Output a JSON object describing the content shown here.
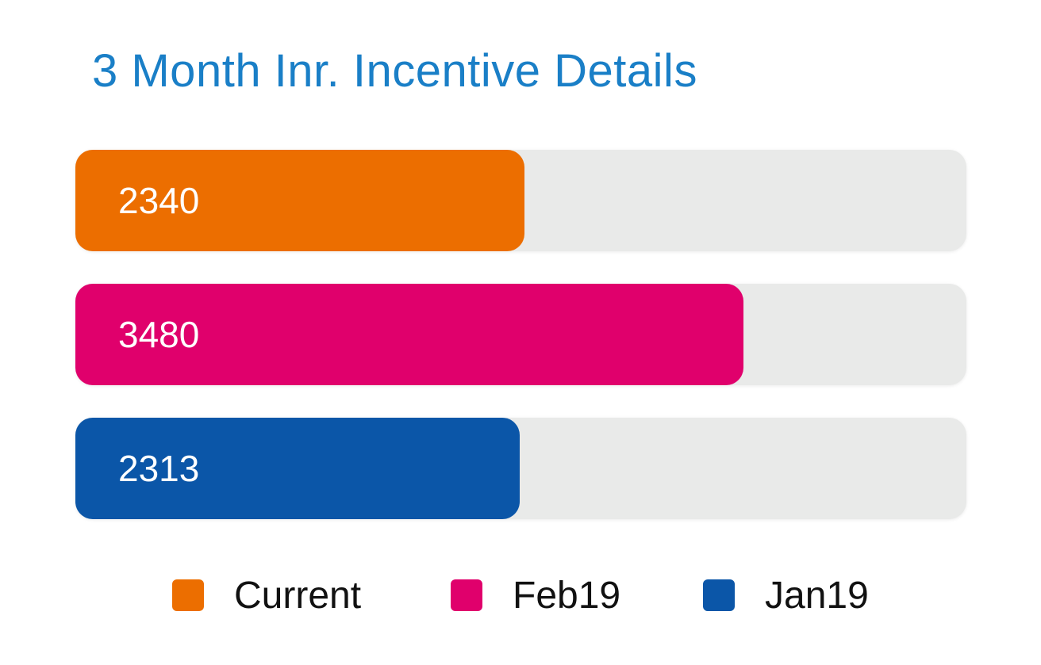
{
  "chart_data": {
    "type": "bar",
    "orientation": "horizontal",
    "title": "3 Month Inr. Incentive Details",
    "categories": [
      "Current",
      "Feb19",
      "Jan19"
    ],
    "values": [
      2340,
      3480,
      2313
    ],
    "value_labels": [
      "2340",
      "3480",
      "2313"
    ],
    "xlim": [
      0,
      4640
    ],
    "colors": [
      "#ec6e00",
      "#e0006c",
      "#0b56a8"
    ],
    "track_color": "#e9eae9",
    "legend_position": "bottom",
    "grid": false
  }
}
